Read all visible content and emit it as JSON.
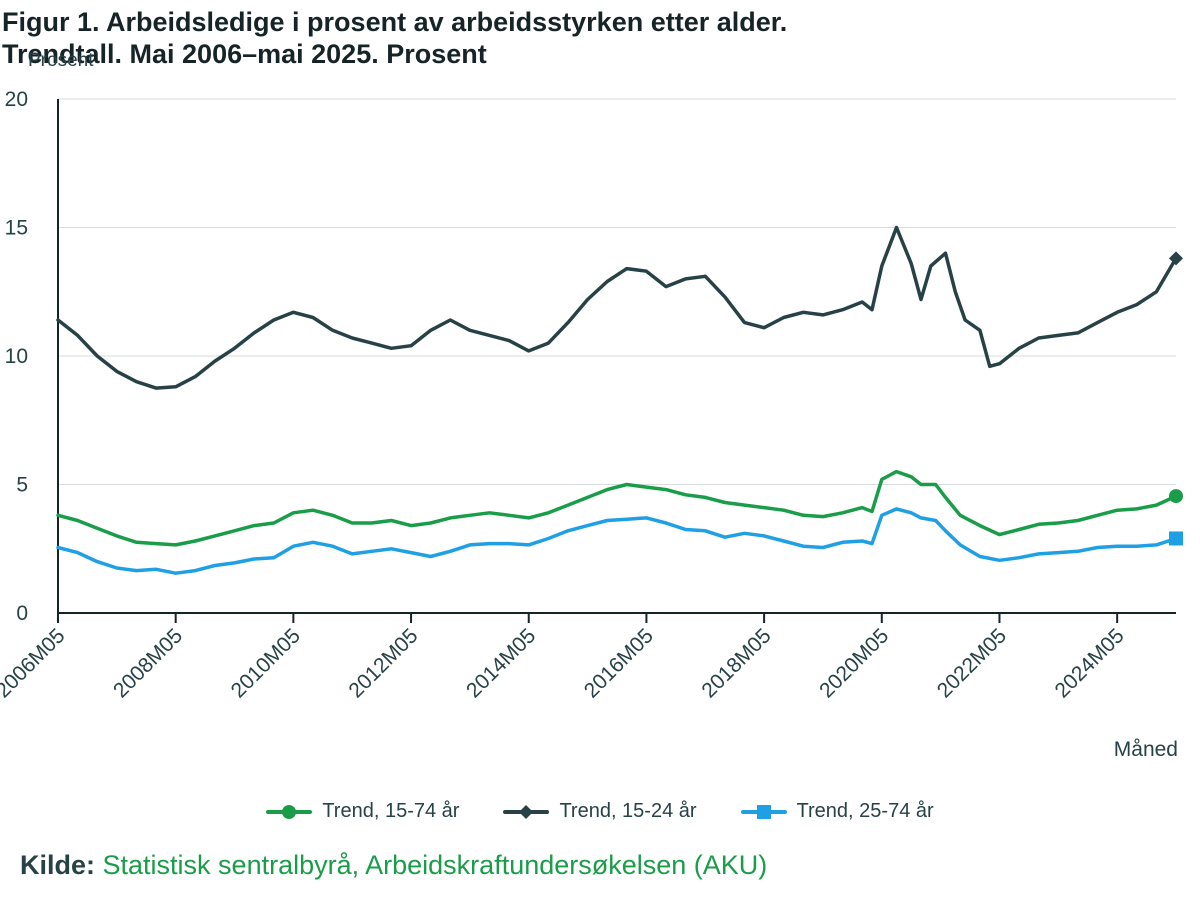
{
  "title": "Figur 1. Arbeidsledige i prosent av arbeidsstyrken etter alder. Trendtall. Mai 2006–mai 2025. Prosent",
  "source": {
    "label": "Kilde:",
    "text": "Statistisk sentralbyrå, Arbeidskraftundersøkelsen (AKU)"
  },
  "chart_data": {
    "type": "line",
    "title": "Figur 1. Arbeidsledige i prosent av arbeidsstyrken etter alder. Trendtall. Mai 2006–mai 2025. Prosent",
    "xlabel": "Måned",
    "ylabel": "Prosent",
    "ylim": [
      0,
      20
    ],
    "yticks": [
      0,
      5,
      10,
      15,
      20
    ],
    "xlim": [
      "2006M05",
      "2025M05"
    ],
    "xticks": [
      "2006M05",
      "2008M05",
      "2010M05",
      "2012M05",
      "2014M05",
      "2016M05",
      "2018M05",
      "2020M05",
      "2022M05",
      "2024M05"
    ],
    "grid": true,
    "legend_position": "bottom",
    "series": [
      {
        "name": "Trend, 15-74 år",
        "color": "#1a9d49",
        "marker": "circle",
        "points": [
          [
            "2006M05",
            3.8
          ],
          [
            "2006M09",
            3.6
          ],
          [
            "2007M01",
            3.3
          ],
          [
            "2007M05",
            3.0
          ],
          [
            "2007M09",
            2.75
          ],
          [
            "2008M01",
            2.7
          ],
          [
            "2008M05",
            2.65
          ],
          [
            "2008M09",
            2.8
          ],
          [
            "2009M01",
            3.0
          ],
          [
            "2009M05",
            3.2
          ],
          [
            "2009M09",
            3.4
          ],
          [
            "2010M01",
            3.5
          ],
          [
            "2010M05",
            3.9
          ],
          [
            "2010M09",
            4.0
          ],
          [
            "2011M01",
            3.8
          ],
          [
            "2011M05",
            3.5
          ],
          [
            "2011M09",
            3.5
          ],
          [
            "2012M01",
            3.6
          ],
          [
            "2012M05",
            3.4
          ],
          [
            "2012M09",
            3.5
          ],
          [
            "2013M01",
            3.7
          ],
          [
            "2013M05",
            3.8
          ],
          [
            "2013M09",
            3.9
          ],
          [
            "2014M01",
            3.8
          ],
          [
            "2014M05",
            3.7
          ],
          [
            "2014M09",
            3.9
          ],
          [
            "2015M01",
            4.2
          ],
          [
            "2015M05",
            4.5
          ],
          [
            "2015M09",
            4.8
          ],
          [
            "2016M01",
            5.0
          ],
          [
            "2016M05",
            4.9
          ],
          [
            "2016M09",
            4.8
          ],
          [
            "2017M01",
            4.6
          ],
          [
            "2017M05",
            4.5
          ],
          [
            "2017M09",
            4.3
          ],
          [
            "2018M01",
            4.2
          ],
          [
            "2018M05",
            4.1
          ],
          [
            "2018M09",
            4.0
          ],
          [
            "2019M01",
            3.8
          ],
          [
            "2019M05",
            3.75
          ],
          [
            "2019M09",
            3.9
          ],
          [
            "2020M01",
            4.1
          ],
          [
            "2020M03",
            3.95
          ],
          [
            "2020M05",
            5.2
          ],
          [
            "2020M08",
            5.5
          ],
          [
            "2020M11",
            5.3
          ],
          [
            "2021M01",
            5.0
          ],
          [
            "2021M04",
            5.0
          ],
          [
            "2021M06",
            4.5
          ],
          [
            "2021M09",
            3.8
          ],
          [
            "2022M01",
            3.4
          ],
          [
            "2022M05",
            3.05
          ],
          [
            "2022M09",
            3.25
          ],
          [
            "2023M01",
            3.45
          ],
          [
            "2023M05",
            3.5
          ],
          [
            "2023M09",
            3.6
          ],
          [
            "2024M01",
            3.8
          ],
          [
            "2024M05",
            4.0
          ],
          [
            "2024M09",
            4.05
          ],
          [
            "2025M01",
            4.2
          ],
          [
            "2025M05",
            4.55
          ]
        ]
      },
      {
        "name": "Trend, 15-24 år",
        "color": "#274247",
        "marker": "diamond",
        "points": [
          [
            "2006M05",
            11.4
          ],
          [
            "2006M09",
            10.8
          ],
          [
            "2007M01",
            10.0
          ],
          [
            "2007M05",
            9.4
          ],
          [
            "2007M09",
            9.0
          ],
          [
            "2008M01",
            8.75
          ],
          [
            "2008M05",
            8.8
          ],
          [
            "2008M09",
            9.2
          ],
          [
            "2009M01",
            9.8
          ],
          [
            "2009M05",
            10.3
          ],
          [
            "2009M09",
            10.9
          ],
          [
            "2010M01",
            11.4
          ],
          [
            "2010M05",
            11.7
          ],
          [
            "2010M09",
            11.5
          ],
          [
            "2011M01",
            11.0
          ],
          [
            "2011M05",
            10.7
          ],
          [
            "2011M09",
            10.5
          ],
          [
            "2012M01",
            10.3
          ],
          [
            "2012M05",
            10.4
          ],
          [
            "2012M09",
            11.0
          ],
          [
            "2013M01",
            11.4
          ],
          [
            "2013M05",
            11.0
          ],
          [
            "2013M09",
            10.8
          ],
          [
            "2014M01",
            10.6
          ],
          [
            "2014M05",
            10.2
          ],
          [
            "2014M09",
            10.5
          ],
          [
            "2015M01",
            11.3
          ],
          [
            "2015M05",
            12.2
          ],
          [
            "2015M09",
            12.9
          ],
          [
            "2016M01",
            13.4
          ],
          [
            "2016M05",
            13.3
          ],
          [
            "2016M09",
            12.7
          ],
          [
            "2017M01",
            13.0
          ],
          [
            "2017M05",
            13.1
          ],
          [
            "2017M09",
            12.3
          ],
          [
            "2018M01",
            11.3
          ],
          [
            "2018M05",
            11.1
          ],
          [
            "2018M09",
            11.5
          ],
          [
            "2019M01",
            11.7
          ],
          [
            "2019M05",
            11.6
          ],
          [
            "2019M09",
            11.8
          ],
          [
            "2020M01",
            12.1
          ],
          [
            "2020M03",
            11.8
          ],
          [
            "2020M05",
            13.5
          ],
          [
            "2020M08",
            15.0
          ],
          [
            "2020M11",
            13.6
          ],
          [
            "2021M01",
            12.2
          ],
          [
            "2021M03",
            13.5
          ],
          [
            "2021M06",
            14.0
          ],
          [
            "2021M08",
            12.5
          ],
          [
            "2021M10",
            11.4
          ],
          [
            "2022M01",
            11.0
          ],
          [
            "2022M03",
            9.6
          ],
          [
            "2022M05",
            9.7
          ],
          [
            "2022M09",
            10.3
          ],
          [
            "2023M01",
            10.7
          ],
          [
            "2023M05",
            10.8
          ],
          [
            "2023M09",
            10.9
          ],
          [
            "2024M01",
            11.3
          ],
          [
            "2024M05",
            11.7
          ],
          [
            "2024M09",
            12.0
          ],
          [
            "2025M01",
            12.5
          ],
          [
            "2025M05",
            13.8
          ]
        ]
      },
      {
        "name": "Trend, 25-74 år",
        "color": "#1fa0e4",
        "marker": "square",
        "points": [
          [
            "2006M05",
            2.55
          ],
          [
            "2006M09",
            2.35
          ],
          [
            "2007M01",
            2.0
          ],
          [
            "2007M05",
            1.75
          ],
          [
            "2007M09",
            1.65
          ],
          [
            "2008M01",
            1.7
          ],
          [
            "2008M05",
            1.55
          ],
          [
            "2008M09",
            1.65
          ],
          [
            "2009M01",
            1.85
          ],
          [
            "2009M05",
            1.95
          ],
          [
            "2009M09",
            2.1
          ],
          [
            "2010M01",
            2.15
          ],
          [
            "2010M05",
            2.6
          ],
          [
            "2010M09",
            2.75
          ],
          [
            "2011M01",
            2.6
          ],
          [
            "2011M05",
            2.3
          ],
          [
            "2011M09",
            2.4
          ],
          [
            "2012M01",
            2.5
          ],
          [
            "2012M05",
            2.35
          ],
          [
            "2012M09",
            2.2
          ],
          [
            "2013M01",
            2.4
          ],
          [
            "2013M05",
            2.65
          ],
          [
            "2013M09",
            2.7
          ],
          [
            "2014M01",
            2.7
          ],
          [
            "2014M05",
            2.65
          ],
          [
            "2014M09",
            2.9
          ],
          [
            "2015M01",
            3.2
          ],
          [
            "2015M05",
            3.4
          ],
          [
            "2015M09",
            3.6
          ],
          [
            "2016M01",
            3.65
          ],
          [
            "2016M05",
            3.7
          ],
          [
            "2016M09",
            3.5
          ],
          [
            "2017M01",
            3.25
          ],
          [
            "2017M05",
            3.2
          ],
          [
            "2017M09",
            2.95
          ],
          [
            "2018M01",
            3.1
          ],
          [
            "2018M05",
            3.0
          ],
          [
            "2018M09",
            2.8
          ],
          [
            "2019M01",
            2.6
          ],
          [
            "2019M05",
            2.55
          ],
          [
            "2019M09",
            2.75
          ],
          [
            "2020M01",
            2.8
          ],
          [
            "2020M03",
            2.7
          ],
          [
            "2020M05",
            3.8
          ],
          [
            "2020M08",
            4.05
          ],
          [
            "2020M11",
            3.9
          ],
          [
            "2021M01",
            3.7
          ],
          [
            "2021M04",
            3.6
          ],
          [
            "2021M06",
            3.2
          ],
          [
            "2021M09",
            2.65
          ],
          [
            "2022M01",
            2.2
          ],
          [
            "2022M05",
            2.05
          ],
          [
            "2022M09",
            2.15
          ],
          [
            "2023M01",
            2.3
          ],
          [
            "2023M05",
            2.35
          ],
          [
            "2023M09",
            2.4
          ],
          [
            "2024M01",
            2.55
          ],
          [
            "2024M05",
            2.6
          ],
          [
            "2024M09",
            2.6
          ],
          [
            "2025M01",
            2.65
          ],
          [
            "2025M05",
            2.9
          ]
        ]
      }
    ]
  }
}
